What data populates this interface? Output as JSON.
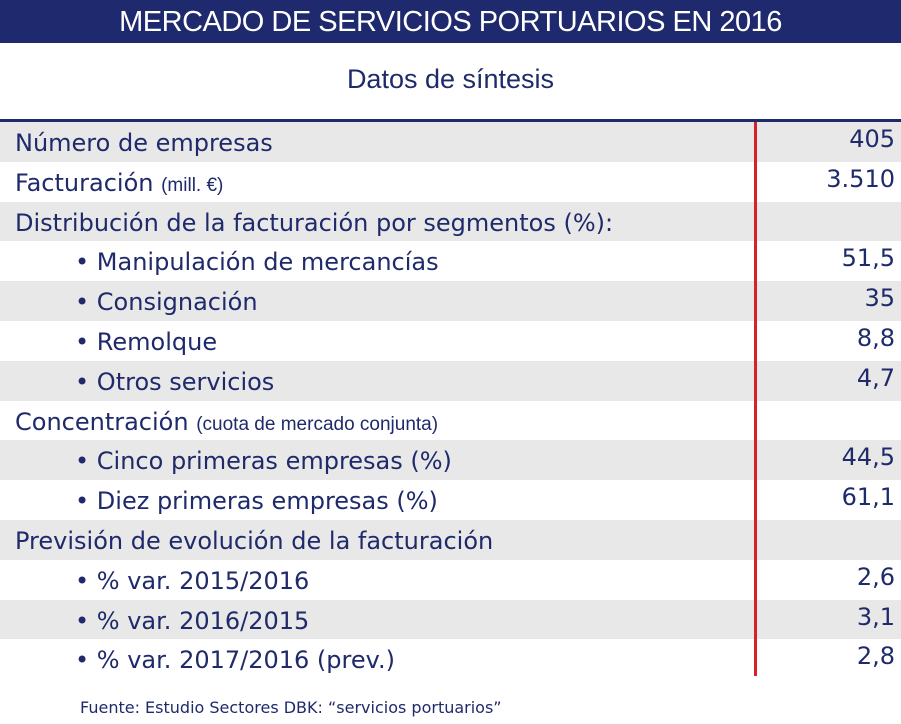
{
  "title": "MERCADO DE SERVICIOS PORTUARIOS EN 2016",
  "subtitle": "Datos de síntesis",
  "rows": [
    {
      "label": "Número de empresas",
      "note": "",
      "value": "405",
      "bullet": false
    },
    {
      "label": "Facturación",
      "note": "(mill. €)",
      "value": "3.510",
      "bullet": false
    },
    {
      "label": "Distribución de la facturación por segmentos (%):",
      "note": "",
      "value": "",
      "bullet": false
    },
    {
      "label": "Manipulación de mercancías",
      "note": "",
      "value": "51,5",
      "bullet": true
    },
    {
      "label": "Consignación",
      "note": "",
      "value": "35",
      "bullet": true
    },
    {
      "label": "Remolque",
      "note": "",
      "value": "8,8",
      "bullet": true
    },
    {
      "label": "Otros servicios",
      "note": "",
      "value": "4,7",
      "bullet": true
    },
    {
      "label": "Concentración",
      "note": "(cuota de mercado conjunta)",
      "value": "",
      "bullet": false
    },
    {
      "label": "Cinco primeras empresas (%)",
      "note": "",
      "value": "44,5",
      "bullet": true
    },
    {
      "label": "Diez primeras empresas (%)",
      "note": "",
      "value": "61,1",
      "bullet": true
    },
    {
      "label": "Previsión de evolución de la facturación",
      "note": "",
      "value": "",
      "bullet": false
    },
    {
      "label": "% var. 2015/2016",
      "note": "",
      "value": "2,6",
      "bullet": true
    },
    {
      "label": "% var. 2016/2015",
      "note": "",
      "value": "3,1",
      "bullet": true
    },
    {
      "label": "% var. 2017/2016 (prev.)",
      "note": "",
      "value": "2,8",
      "bullet": true
    }
  ],
  "footer": "Fuente: Estudio Sectores DBK: “servicios portuarios”",
  "colors": {
    "navy": "#1f2a6e",
    "divider": "#d8202a",
    "row_alt": "#e8e8e8"
  }
}
